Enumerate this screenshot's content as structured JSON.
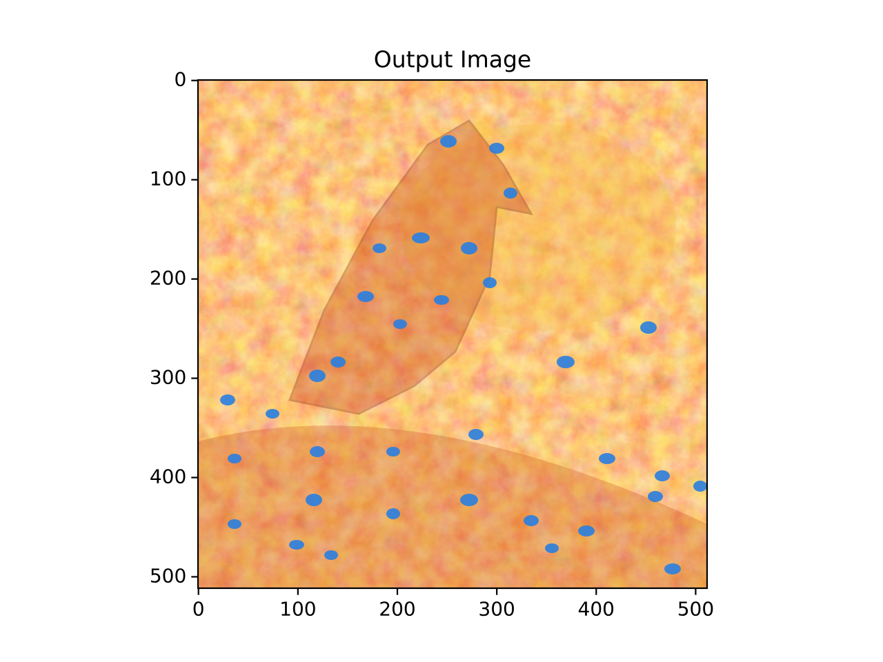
{
  "chart_data": {
    "type": "image",
    "title": "Output Image",
    "xlim": [
      -0.5,
      511.5
    ],
    "ylim": [
      511.5,
      -0.5
    ],
    "xticks": [
      0,
      100,
      200,
      300,
      400,
      500
    ],
    "yticks": [
      0,
      100,
      200,
      300,
      400,
      500
    ],
    "grid": false
  }
}
